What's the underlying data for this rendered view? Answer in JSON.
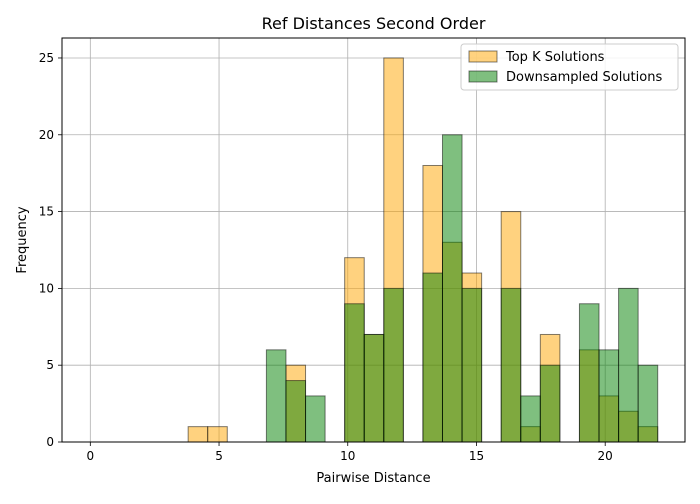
{
  "chart_data": {
    "type": "bar",
    "title": "Ref Distances Second Order",
    "xlabel": "Pairwise Distance",
    "ylabel": "Frequency",
    "xlim": [
      -1.1,
      23.1
    ],
    "ylim": [
      0,
      26.3
    ],
    "xticks": [
      0,
      5,
      10,
      15,
      20
    ],
    "yticks": [
      0,
      5,
      10,
      15,
      20,
      25
    ],
    "grid": true,
    "legend_position": "top-right",
    "bin_width": 0.76,
    "bins": [
      {
        "x": 0.0,
        "top_k": 0,
        "down": 0
      },
      {
        "x": 0.76,
        "top_k": 0,
        "down": 0
      },
      {
        "x": 1.52,
        "top_k": 0,
        "down": 0
      },
      {
        "x": 2.28,
        "top_k": 0,
        "down": 0
      },
      {
        "x": 3.04,
        "top_k": 0,
        "down": 0
      },
      {
        "x": 3.8,
        "top_k": 1,
        "down": 0
      },
      {
        "x": 4.56,
        "top_k": 1,
        "down": 0
      },
      {
        "x": 5.32,
        "top_k": 0,
        "down": 0
      },
      {
        "x": 6.08,
        "top_k": 0,
        "down": 0
      },
      {
        "x": 6.84,
        "top_k": 0,
        "down": 6
      },
      {
        "x": 7.6,
        "top_k": 5,
        "down": 4
      },
      {
        "x": 8.36,
        "top_k": 0,
        "down": 3
      },
      {
        "x": 9.12,
        "top_k": 0,
        "down": 0
      },
      {
        "x": 9.88,
        "top_k": 12,
        "down": 9
      },
      {
        "x": 10.64,
        "top_k": 7,
        "down": 7
      },
      {
        "x": 11.4,
        "top_k": 25,
        "down": 10
      },
      {
        "x": 12.16,
        "top_k": 0,
        "down": 0
      },
      {
        "x": 12.92,
        "top_k": 18,
        "down": 11
      },
      {
        "x": 13.68,
        "top_k": 13,
        "down": 20
      },
      {
        "x": 14.44,
        "top_k": 11,
        "down": 10
      },
      {
        "x": 15.2,
        "top_k": 0,
        "down": 0
      },
      {
        "x": 15.96,
        "top_k": 15,
        "down": 10
      },
      {
        "x": 16.72,
        "top_k": 1,
        "down": 3
      },
      {
        "x": 17.48,
        "top_k": 7,
        "down": 5
      },
      {
        "x": 18.24,
        "top_k": 0,
        "down": 0
      },
      {
        "x": 19.0,
        "top_k": 6,
        "down": 9
      },
      {
        "x": 19.76,
        "top_k": 3,
        "down": 6
      },
      {
        "x": 20.52,
        "top_k": 2,
        "down": 10
      },
      {
        "x": 21.28,
        "top_k": 1,
        "down": 5
      }
    ],
    "series": [
      {
        "name": "Top K Solutions",
        "key": "top_k",
        "color": "#ffa500",
        "opacity": 0.5
      },
      {
        "name": "Downsampled Solutions",
        "key": "down",
        "color": "#008000",
        "opacity": 0.5
      }
    ]
  }
}
